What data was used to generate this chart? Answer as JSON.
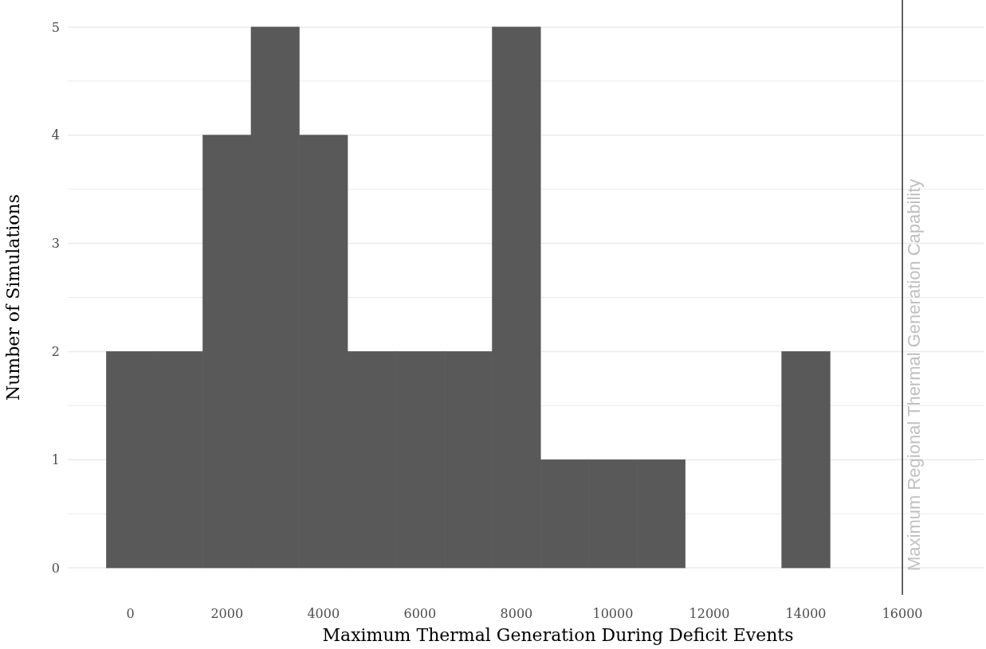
{
  "chart_data": {
    "type": "histogram",
    "xlabel": "Maximum Thermal Generation During Deficit Events",
    "ylabel": "Number of Simulations",
    "bins": [
      -500,
      500,
      1500,
      2500,
      3500,
      4500,
      5500,
      6500,
      7500,
      8500,
      9500,
      10500,
      11500,
      12500,
      13500,
      14500
    ],
    "values": [
      2,
      2,
      4,
      5,
      4,
      2,
      2,
      2,
      5,
      1,
      1,
      1,
      0,
      0,
      2
    ],
    "color": "#595959",
    "xlim": [
      -1300,
      17700
    ],
    "xticks": [
      0,
      2000,
      4000,
      6000,
      8000,
      10000,
      12000,
      14000,
      16000
    ],
    "ylim": [
      -0.25,
      5.25
    ],
    "yticks": [
      0,
      {
        "value": 0.5,
        "label": null
      },
      1,
      {
        "value": 1.5,
        "label": null
      },
      2,
      {
        "value": 2.5,
        "label": null
      },
      3,
      {
        "value": 3.5,
        "label": null
      },
      4,
      {
        "value": 4.5,
        "label": null
      },
      5
    ],
    "grid": "y",
    "ref_lines": [
      {
        "axis": "x",
        "value": 16000,
        "label": "Maximum Regional Thermal Generation Capability",
        "color": "#000000"
      }
    ]
  }
}
